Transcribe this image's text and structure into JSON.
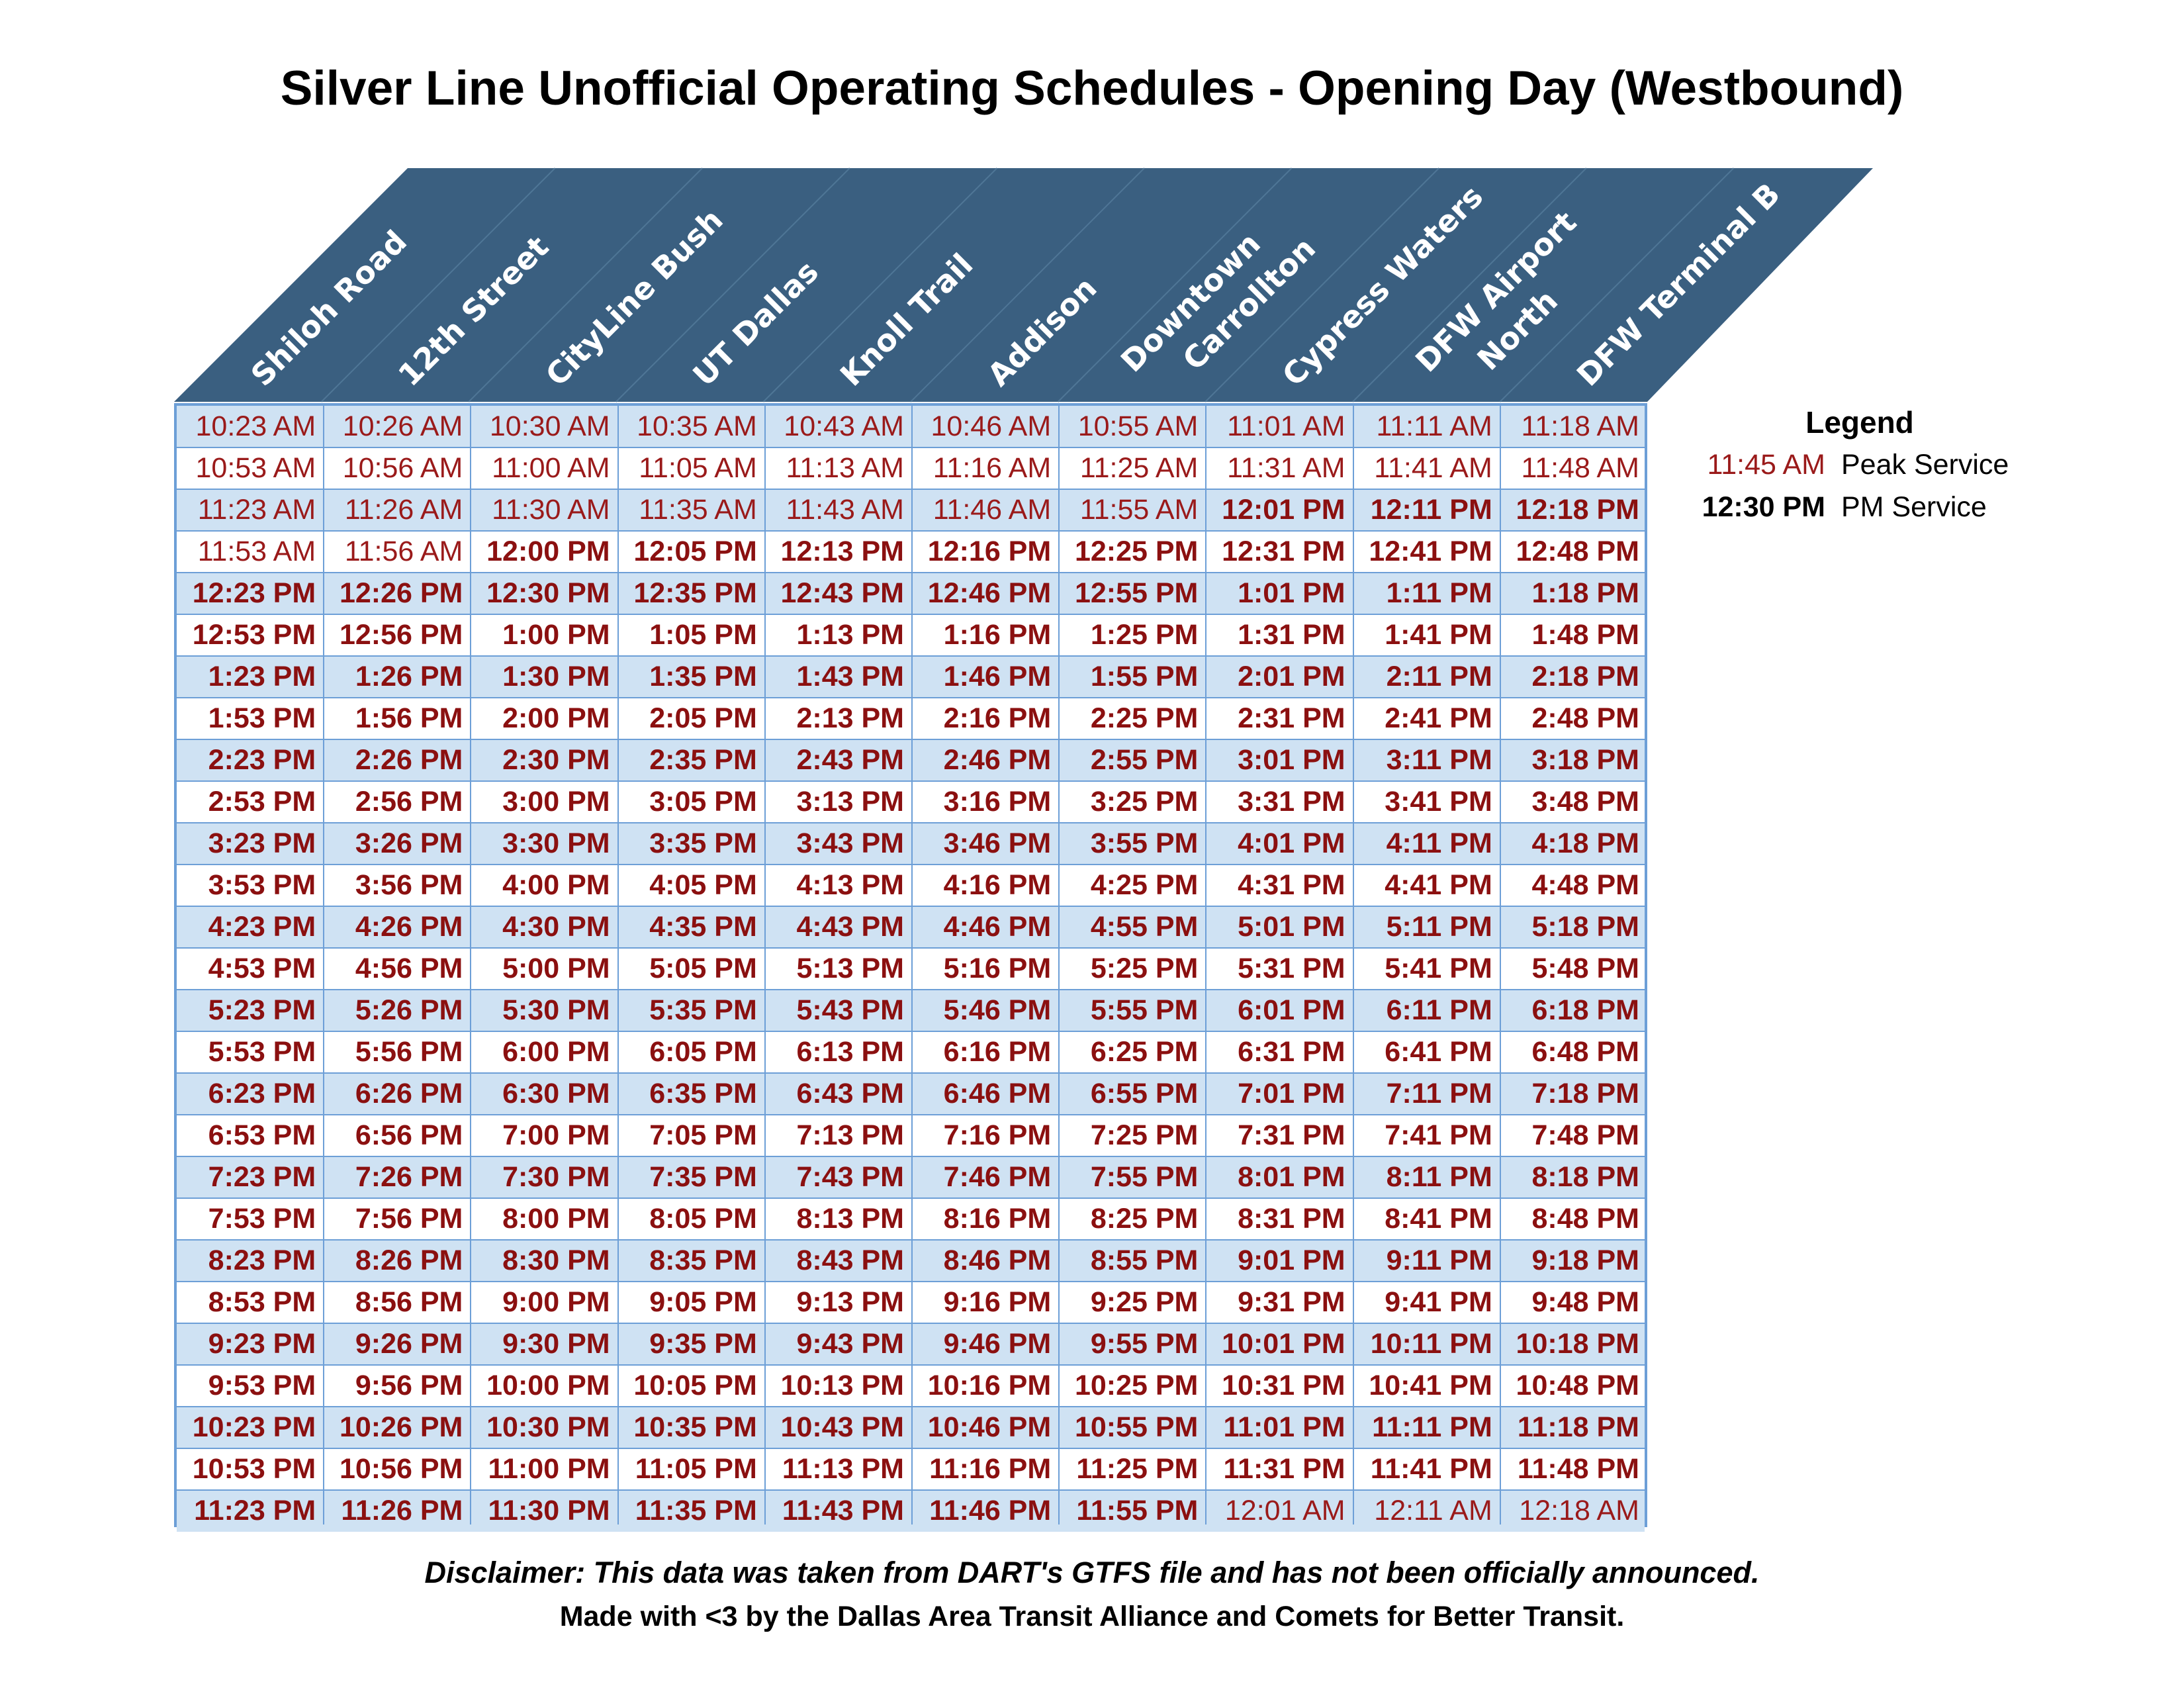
{
  "title": "Silver Line Unofficial Operating Schedules - Opening Day (Westbound)",
  "stations": [
    [
      "Shiloh Road"
    ],
    [
      "12th Street"
    ],
    [
      "CityLine Bush"
    ],
    [
      "UT Dallas"
    ],
    [
      "Knoll Trail"
    ],
    [
      "Addison"
    ],
    [
      "Downtown",
      "Carrollton"
    ],
    [
      "Cypress Waters"
    ],
    [
      "DFW Airport",
      "North"
    ],
    [
      "DFW Terminal B"
    ]
  ],
  "colors": {
    "header": "#3a5f80",
    "row_light": "#cfe2f3",
    "row_white": "#ffffff",
    "grid_line": "#6d9fd7",
    "peak_service": "#9a1a1a",
    "pm_service": "#8b1010"
  },
  "schedule": [
    [
      "10:23 AM",
      "10:26 AM",
      "10:30 AM",
      "10:35 AM",
      "10:43 AM",
      "10:46 AM",
      "10:55 AM",
      "11:01 AM",
      "11:11 AM",
      "11:18 AM"
    ],
    [
      "10:53 AM",
      "10:56 AM",
      "11:00 AM",
      "11:05 AM",
      "11:13 AM",
      "11:16 AM",
      "11:25 AM",
      "11:31 AM",
      "11:41 AM",
      "11:48 AM"
    ],
    [
      "11:23 AM",
      "11:26 AM",
      "11:30 AM",
      "11:35 AM",
      "11:43 AM",
      "11:46 AM",
      "11:55 AM",
      "12:01 PM",
      "12:11 PM",
      "12:18 PM"
    ],
    [
      "11:53 AM",
      "11:56 AM",
      "12:00 PM",
      "12:05 PM",
      "12:13 PM",
      "12:16 PM",
      "12:25 PM",
      "12:31 PM",
      "12:41 PM",
      "12:48 PM"
    ],
    [
      "12:23 PM",
      "12:26 PM",
      "12:30 PM",
      "12:35 PM",
      "12:43 PM",
      "12:46 PM",
      "12:55 PM",
      "1:01 PM",
      "1:11 PM",
      "1:18 PM"
    ],
    [
      "12:53 PM",
      "12:56 PM",
      "1:00 PM",
      "1:05 PM",
      "1:13 PM",
      "1:16 PM",
      "1:25 PM",
      "1:31 PM",
      "1:41 PM",
      "1:48 PM"
    ],
    [
      "1:23 PM",
      "1:26 PM",
      "1:30 PM",
      "1:35 PM",
      "1:43 PM",
      "1:46 PM",
      "1:55 PM",
      "2:01 PM",
      "2:11 PM",
      "2:18 PM"
    ],
    [
      "1:53 PM",
      "1:56 PM",
      "2:00 PM",
      "2:05 PM",
      "2:13 PM",
      "2:16 PM",
      "2:25 PM",
      "2:31 PM",
      "2:41 PM",
      "2:48 PM"
    ],
    [
      "2:23 PM",
      "2:26 PM",
      "2:30 PM",
      "2:35 PM",
      "2:43 PM",
      "2:46 PM",
      "2:55 PM",
      "3:01 PM",
      "3:11 PM",
      "3:18 PM"
    ],
    [
      "2:53 PM",
      "2:56 PM",
      "3:00 PM",
      "3:05 PM",
      "3:13 PM",
      "3:16 PM",
      "3:25 PM",
      "3:31 PM",
      "3:41 PM",
      "3:48 PM"
    ],
    [
      "3:23 PM",
      "3:26 PM",
      "3:30 PM",
      "3:35 PM",
      "3:43 PM",
      "3:46 PM",
      "3:55 PM",
      "4:01 PM",
      "4:11 PM",
      "4:18 PM"
    ],
    [
      "3:53 PM",
      "3:56 PM",
      "4:00 PM",
      "4:05 PM",
      "4:13 PM",
      "4:16 PM",
      "4:25 PM",
      "4:31 PM",
      "4:41 PM",
      "4:48 PM"
    ],
    [
      "4:23 PM",
      "4:26 PM",
      "4:30 PM",
      "4:35 PM",
      "4:43 PM",
      "4:46 PM",
      "4:55 PM",
      "5:01 PM",
      "5:11 PM",
      "5:18 PM"
    ],
    [
      "4:53 PM",
      "4:56 PM",
      "5:00 PM",
      "5:05 PM",
      "5:13 PM",
      "5:16 PM",
      "5:25 PM",
      "5:31 PM",
      "5:41 PM",
      "5:48 PM"
    ],
    [
      "5:23 PM",
      "5:26 PM",
      "5:30 PM",
      "5:35 PM",
      "5:43 PM",
      "5:46 PM",
      "5:55 PM",
      "6:01 PM",
      "6:11 PM",
      "6:18 PM"
    ],
    [
      "5:53 PM",
      "5:56 PM",
      "6:00 PM",
      "6:05 PM",
      "6:13 PM",
      "6:16 PM",
      "6:25 PM",
      "6:31 PM",
      "6:41 PM",
      "6:48 PM"
    ],
    [
      "6:23 PM",
      "6:26 PM",
      "6:30 PM",
      "6:35 PM",
      "6:43 PM",
      "6:46 PM",
      "6:55 PM",
      "7:01 PM",
      "7:11 PM",
      "7:18 PM"
    ],
    [
      "6:53 PM",
      "6:56 PM",
      "7:00 PM",
      "7:05 PM",
      "7:13 PM",
      "7:16 PM",
      "7:25 PM",
      "7:31 PM",
      "7:41 PM",
      "7:48 PM"
    ],
    [
      "7:23 PM",
      "7:26 PM",
      "7:30 PM",
      "7:35 PM",
      "7:43 PM",
      "7:46 PM",
      "7:55 PM",
      "8:01 PM",
      "8:11 PM",
      "8:18 PM"
    ],
    [
      "7:53 PM",
      "7:56 PM",
      "8:00 PM",
      "8:05 PM",
      "8:13 PM",
      "8:16 PM",
      "8:25 PM",
      "8:31 PM",
      "8:41 PM",
      "8:48 PM"
    ],
    [
      "8:23 PM",
      "8:26 PM",
      "8:30 PM",
      "8:35 PM",
      "8:43 PM",
      "8:46 PM",
      "8:55 PM",
      "9:01 PM",
      "9:11 PM",
      "9:18 PM"
    ],
    [
      "8:53 PM",
      "8:56 PM",
      "9:00 PM",
      "9:05 PM",
      "9:13 PM",
      "9:16 PM",
      "9:25 PM",
      "9:31 PM",
      "9:41 PM",
      "9:48 PM"
    ],
    [
      "9:23 PM",
      "9:26 PM",
      "9:30 PM",
      "9:35 PM",
      "9:43 PM",
      "9:46 PM",
      "9:55 PM",
      "10:01 PM",
      "10:11 PM",
      "10:18 PM"
    ],
    [
      "9:53 PM",
      "9:56 PM",
      "10:00 PM",
      "10:05 PM",
      "10:13 PM",
      "10:16 PM",
      "10:25 PM",
      "10:31 PM",
      "10:41 PM",
      "10:48 PM"
    ],
    [
      "10:23 PM",
      "10:26 PM",
      "10:30 PM",
      "10:35 PM",
      "10:43 PM",
      "10:46 PM",
      "10:55 PM",
      "11:01 PM",
      "11:11 PM",
      "11:18 PM"
    ],
    [
      "10:53 PM",
      "10:56 PM",
      "11:00 PM",
      "11:05 PM",
      "11:13 PM",
      "11:16 PM",
      "11:25 PM",
      "11:31 PM",
      "11:41 PM",
      "11:48 PM"
    ],
    [
      "11:23 PM",
      "11:26 PM",
      "11:30 PM",
      "11:35 PM",
      "11:43 PM",
      "11:46 PM",
      "11:55 PM",
      "12:01 AM",
      "12:11 AM",
      "12:18 AM"
    ]
  ],
  "legend": {
    "title": "Legend",
    "items": [
      {
        "sample": "11:45 AM",
        "label": "Peak Service",
        "style": "am"
      },
      {
        "sample": "12:30 PM",
        "label": "PM Service",
        "style": "pm-black"
      }
    ]
  },
  "disclaimer": "Disclaimer: This data was taken from DART's GTFS file and has not been officially announced.",
  "credit": "Made with <3 by the Dallas Area Transit Alliance and Comets for Better Transit."
}
